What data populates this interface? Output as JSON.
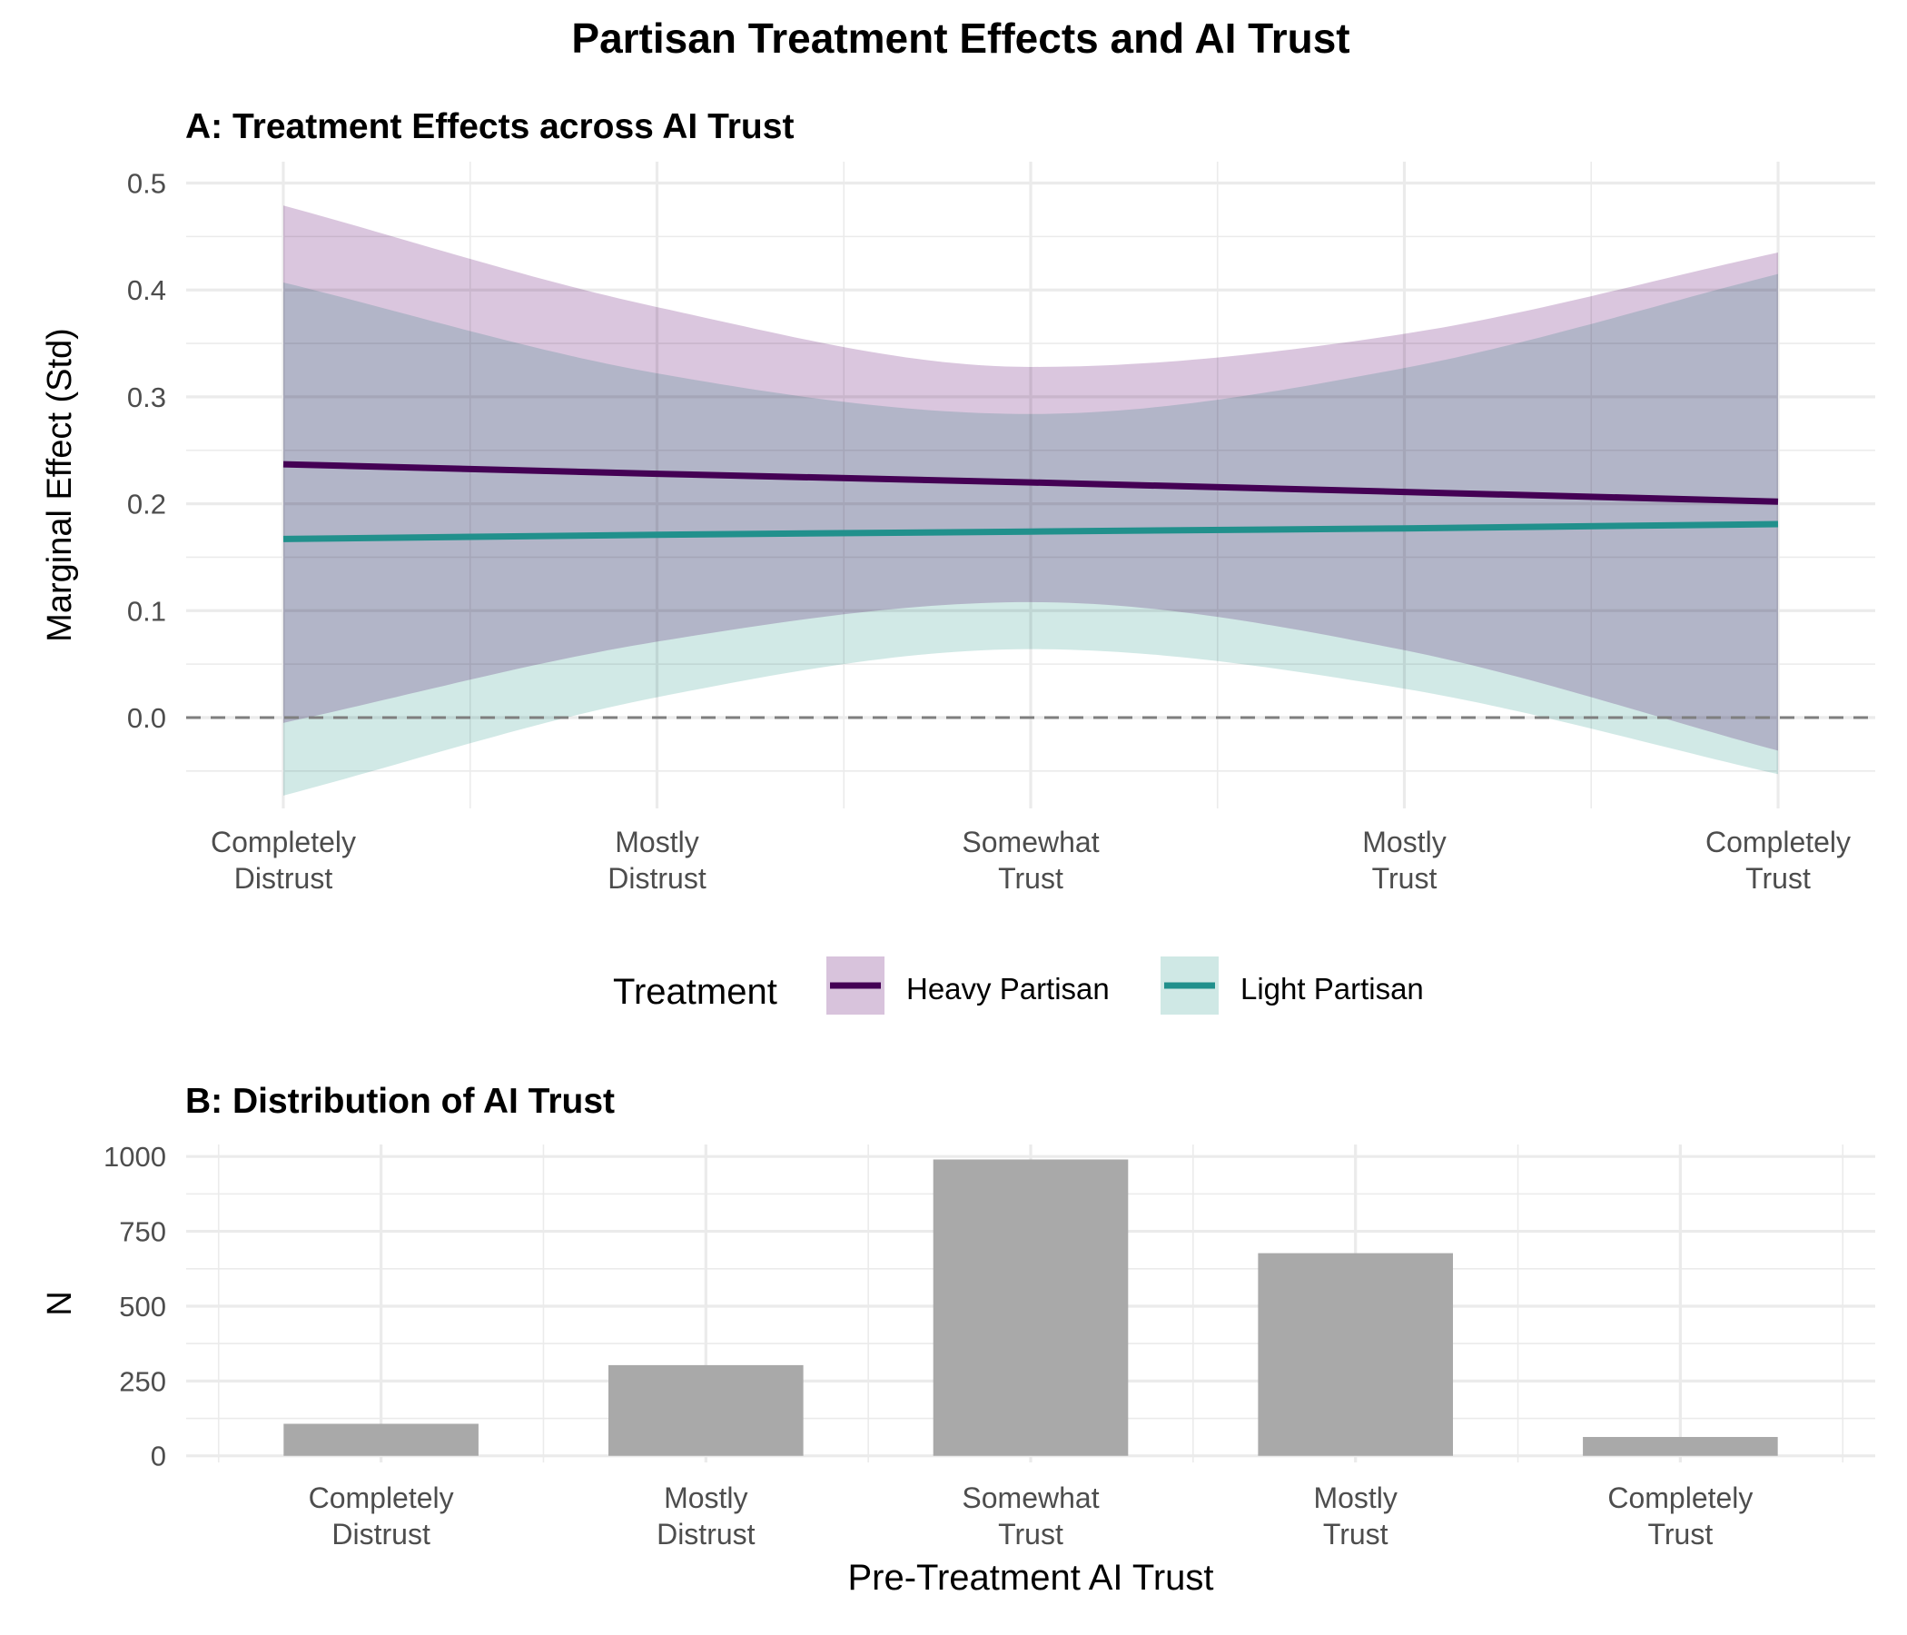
{
  "figure_title": "Partisan Treatment Effects and AI Trust",
  "colors": {
    "heavy": "#440154",
    "light": "#21908C",
    "heavy_ribbon": "#d8c3dc",
    "light_ribbon": "#cfe8e5",
    "bar": "#a9a9a9",
    "grid": "#ebebeb",
    "zero_line": "#7f7f7f"
  },
  "legend": {
    "title": "Treatment",
    "items": [
      {
        "label": "Heavy Partisan"
      },
      {
        "label": "Light Partisan"
      }
    ]
  },
  "chart_data": [
    {
      "type": "line",
      "title": "A: Treatment Effects across AI Trust",
      "xlabel": "",
      "ylabel": "Marginal Effect (Std)",
      "categories": [
        [
          "Completely",
          "Distrust"
        ],
        [
          "Mostly",
          "Distrust"
        ],
        [
          "Somewhat",
          "Trust"
        ],
        [
          "Mostly",
          "Trust"
        ],
        [
          "Completely",
          "Trust"
        ]
      ],
      "x": [
        1,
        2,
        3,
        4,
        5
      ],
      "ylim": [
        -0.085,
        0.52
      ],
      "yticks": [
        0.0,
        0.1,
        0.2,
        0.3,
        0.4,
        0.5
      ],
      "ytick_labels": [
        "0.0",
        "0.1",
        "0.2",
        "0.3",
        "0.4",
        "0.5"
      ],
      "reference_line": {
        "y": 0.0,
        "style": "dashed"
      },
      "grid": true,
      "legend_position": "bottom",
      "series": [
        {
          "name": "Heavy Partisan",
          "values": [
            0.237,
            0.228,
            0.22,
            0.211,
            0.202
          ],
          "ci_lower": [
            -0.005,
            0.071,
            0.108,
            0.063,
            -0.031
          ],
          "ci_upper": [
            0.479,
            0.384,
            0.328,
            0.359,
            0.435
          ]
        },
        {
          "name": "Light Partisan",
          "values": [
            0.167,
            0.171,
            0.174,
            0.177,
            0.181
          ],
          "ci_lower": [
            -0.073,
            0.019,
            0.064,
            0.027,
            -0.053
          ],
          "ci_upper": [
            0.407,
            0.322,
            0.284,
            0.327,
            0.415
          ]
        }
      ]
    },
    {
      "type": "bar",
      "title": "B: Distribution of AI Trust",
      "xlabel": "Pre-Treatment AI Trust",
      "ylabel": "N",
      "categories": [
        [
          "Completely",
          "Distrust"
        ],
        [
          "Mostly",
          "Distrust"
        ],
        [
          "Somewhat",
          "Trust"
        ],
        [
          "Mostly",
          "Trust"
        ],
        [
          "Completely",
          "Trust"
        ]
      ],
      "values": [
        107,
        303,
        990,
        677,
        63
      ],
      "ylim": [
        0,
        1000
      ],
      "yticks": [
        0,
        250,
        500,
        750,
        1000
      ],
      "ytick_labels": [
        "0",
        "250",
        "500",
        "750",
        "1000"
      ],
      "grid": true
    }
  ]
}
